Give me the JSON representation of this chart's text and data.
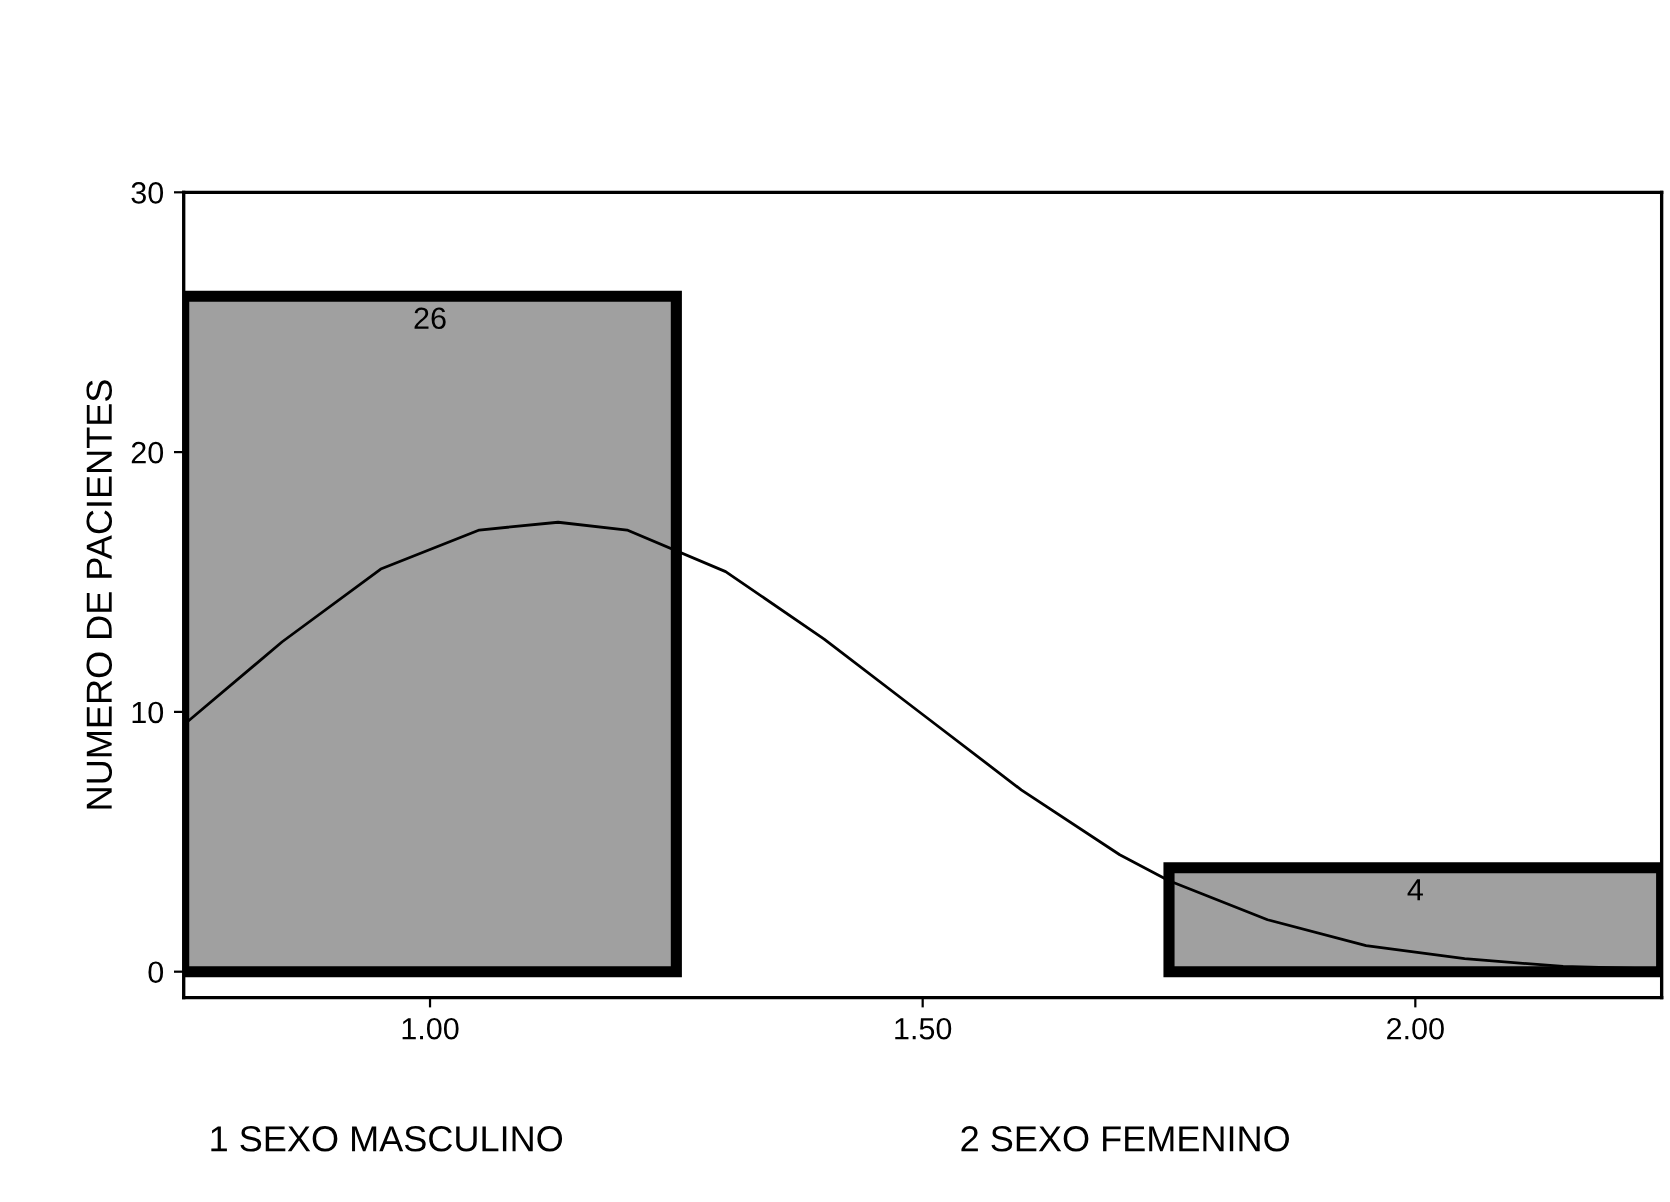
{
  "chart_data": {
    "type": "histogram",
    "ylabel": "NUMERO DE PACIENTES",
    "bins": [
      0.75,
      1.25,
      1.75,
      2.25
    ],
    "values": [
      26,
      0,
      4
    ],
    "value_labels": [
      "26",
      null,
      "4"
    ],
    "color": "#a0a0a0",
    "xlim": [
      0.75,
      2.25
    ],
    "xticks": [
      {
        "value": 1,
        "label": "1.00"
      },
      {
        "value": 1.5,
        "label": "1.50"
      },
      {
        "value": 2,
        "label": "2.00"
      }
    ],
    "ylim": [
      -1,
      30
    ],
    "yticks": [
      0,
      10,
      20,
      30
    ],
    "grid": false,
    "series": [
      {
        "type": "line",
        "color": "#000000",
        "x": [
          0.75,
          0.85,
          0.95,
          1.05,
          1.13,
          1.2,
          1.3,
          1.4,
          1.5,
          1.6,
          1.7,
          1.75,
          1.85,
          1.95,
          2.05,
          2.15,
          2.25
        ],
        "values": [
          9.5,
          12.7,
          15.5,
          17.0,
          17.3,
          17.0,
          15.4,
          12.8,
          9.9,
          7.0,
          4.5,
          3.5,
          2.0,
          1.0,
          0.5,
          0.2,
          0.1
        ]
      }
    ],
    "annotations": [
      "1 SEXO MASCULINO",
      "2 SEXO FEMENINO"
    ]
  }
}
